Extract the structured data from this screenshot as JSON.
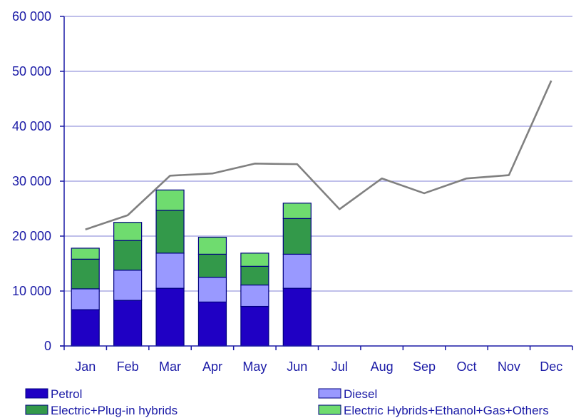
{
  "chart_data": {
    "type": "bar",
    "categories": [
      "Jan",
      "Feb",
      "Mar",
      "Apr",
      "May",
      "Jun",
      "Jul",
      "Aug",
      "Sep",
      "Oct",
      "Nov",
      "Dec"
    ],
    "series": [
      {
        "name": "Petrol",
        "values": [
          6600,
          8300,
          10500,
          8000,
          7200,
          10500,
          null,
          null,
          null,
          null,
          null,
          null
        ],
        "color": "#1f00c4"
      },
      {
        "name": "Diesel",
        "values": [
          3800,
          5500,
          6400,
          4500,
          3900,
          6200,
          null,
          null,
          null,
          null,
          null,
          null
        ],
        "color": "#9999ff"
      },
      {
        "name": "Electric+Plug-in hybrids",
        "values": [
          5400,
          5400,
          7800,
          4200,
          3400,
          6500,
          null,
          null,
          null,
          null,
          null,
          null
        ],
        "color": "#33994a"
      },
      {
        "name": "Electric Hybrids+Ethanol+Gas+Others",
        "values": [
          2000,
          3300,
          3700,
          3100,
          2400,
          2800,
          null,
          null,
          null,
          null,
          null,
          null
        ],
        "color": "#6fdc6f"
      }
    ],
    "line": {
      "values": [
        21200,
        23800,
        31000,
        31400,
        33200,
        33100,
        24900,
        30500,
        27800,
        30500,
        31100,
        48300
      ],
      "color": "#808080"
    },
    "ylim": [
      0,
      60000
    ],
    "yticks": [
      0,
      10000,
      20000,
      30000,
      40000,
      50000,
      60000
    ],
    "ytick_labels": [
      "0",
      "10 000",
      "20 000",
      "30 000",
      "40 000",
      "50 000",
      "60 000"
    ],
    "grid": true,
    "legend_position": "bottom",
    "axis_color": "#1a1aa6",
    "grid_color": "#9999dd"
  }
}
